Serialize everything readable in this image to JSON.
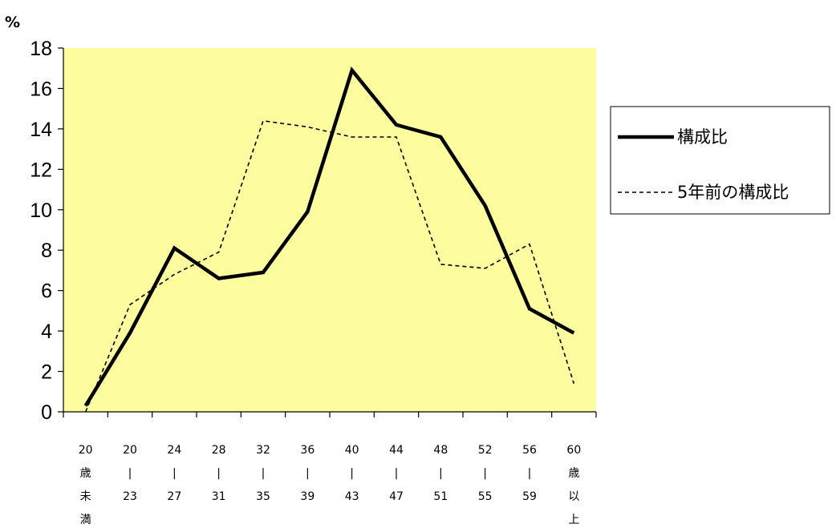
{
  "chart_data": {
    "type": "line",
    "ylabel": "%",
    "ylim": [
      0,
      18
    ],
    "yticks": [
      "0",
      "2",
      "4",
      "6",
      "8",
      "10",
      "12",
      "14",
      "16",
      "18"
    ],
    "categories": [
      [
        "20",
        "歳",
        "未",
        "満"
      ],
      [
        "20",
        "|",
        "23"
      ],
      [
        "24",
        "|",
        "27"
      ],
      [
        "28",
        "|",
        "31"
      ],
      [
        "32",
        "|",
        "35"
      ],
      [
        "36",
        "|",
        "39"
      ],
      [
        "40",
        "|",
        "43"
      ],
      [
        "44",
        "|",
        "47"
      ],
      [
        "48",
        "|",
        "51"
      ],
      [
        "52",
        "|",
        "55"
      ],
      [
        "56",
        "|",
        "59"
      ],
      [
        "60",
        "歳",
        "以",
        "上"
      ]
    ],
    "series": [
      {
        "name": "構成比",
        "style": "solid",
        "values": [
          0.3,
          3.9,
          8.1,
          6.6,
          6.9,
          9.9,
          16.9,
          14.2,
          13.6,
          10.2,
          5.1,
          3.9
        ]
      },
      {
        "name": "5年前の構成比",
        "style": "dashed",
        "values": [
          0.0,
          5.3,
          6.8,
          7.9,
          14.4,
          14.1,
          13.6,
          13.6,
          7.3,
          7.1,
          8.3,
          1.4
        ]
      }
    ],
    "legend": "right",
    "plot_background": "#fdfc9e",
    "grid": false
  }
}
